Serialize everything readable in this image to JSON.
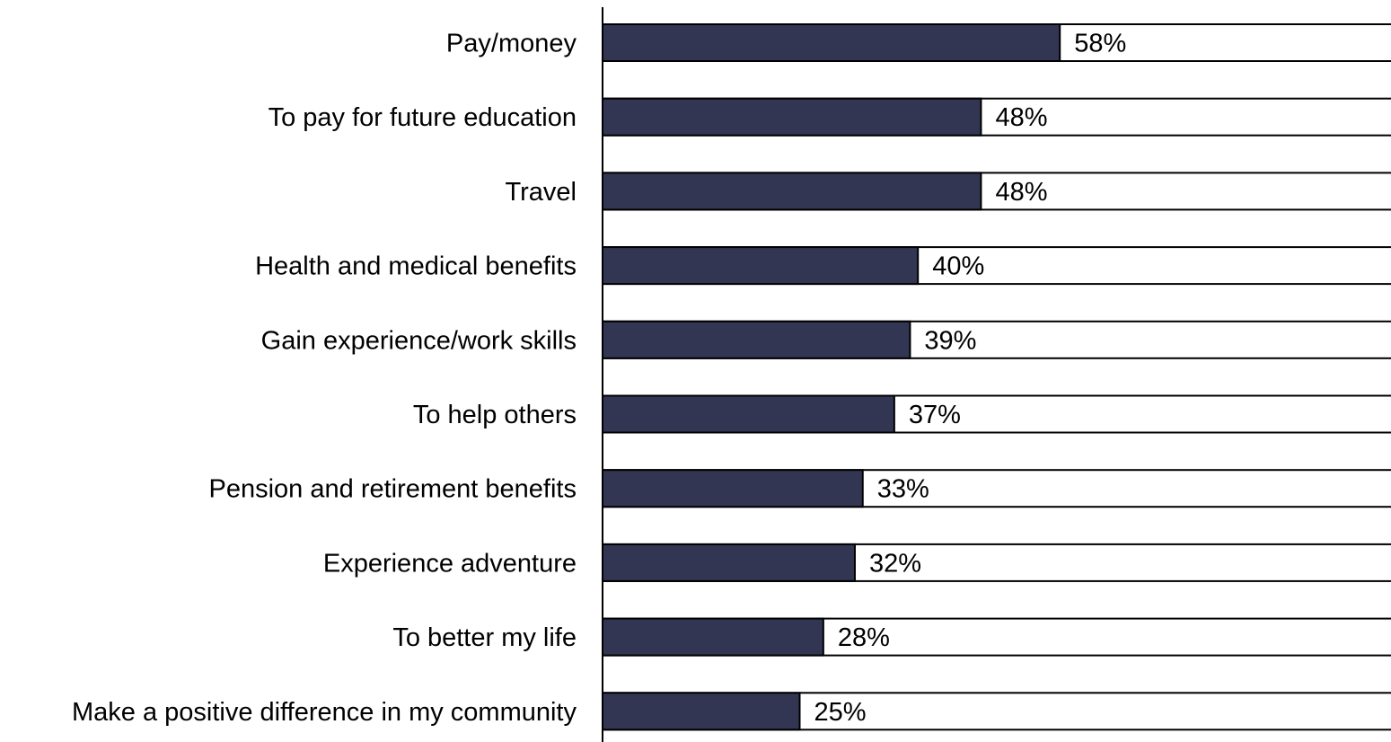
{
  "chart_data": {
    "type": "bar",
    "orientation": "horizontal",
    "categories": [
      "Pay/money",
      "To pay for future education",
      "Travel",
      "Health and medical benefits",
      "Gain experience/work skills",
      "To help others",
      "Pension and retirement benefits",
      "Experience adventure",
      "To better my life",
      "Make a positive difference in my community"
    ],
    "values": [
      58,
      48,
      48,
      40,
      39,
      37,
      33,
      32,
      28,
      25
    ],
    "value_labels": [
      "58%",
      "48%",
      "48%",
      "40%",
      "39%",
      "37%",
      "33%",
      "32%",
      "28%",
      "25%"
    ],
    "total": 100,
    "xlim": [
      0,
      100
    ],
    "title": "",
    "xlabel": "",
    "ylabel": "",
    "grid": false,
    "legend": "none",
    "colors": {
      "filled": "#323653",
      "remainder": "#ffffff",
      "outline": "#000000"
    }
  }
}
